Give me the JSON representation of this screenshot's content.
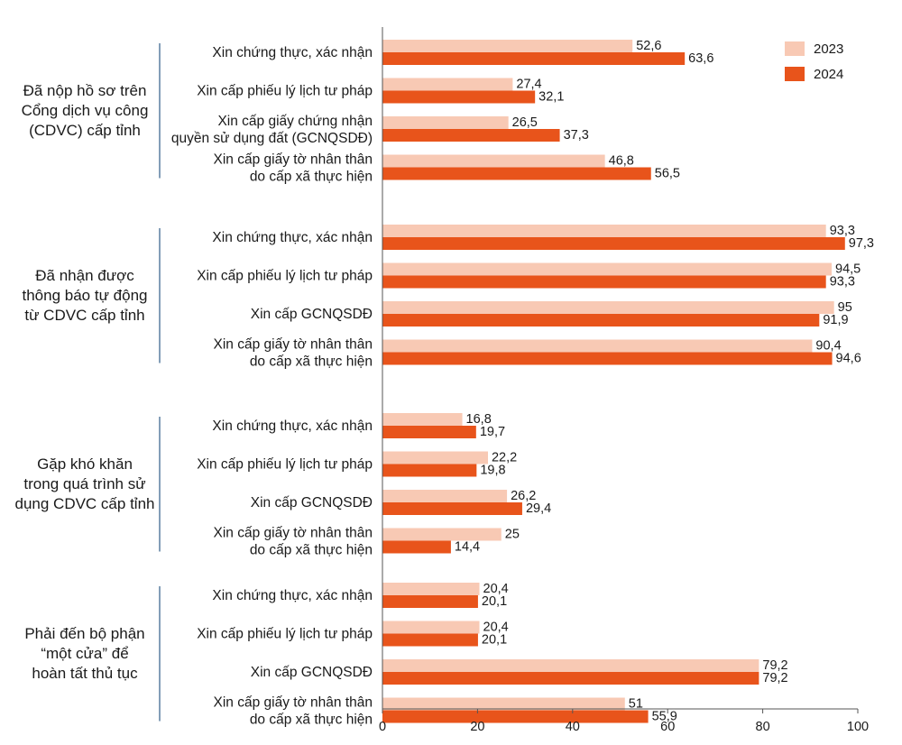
{
  "chart_data": {
    "type": "bar",
    "orientation": "horizontal",
    "xlim": [
      0,
      100
    ],
    "x_ticks": [
      "0",
      "20",
      "40",
      "60",
      "80",
      "100"
    ],
    "grid": false,
    "legend_position": "top-right",
    "colors": {
      "2023": "#f8c9b4",
      "2024": "#e8541b",
      "divider": "#5a7fa0",
      "axis": "#555555"
    },
    "series": [
      {
        "name": "2023",
        "color": "#f8c9b4"
      },
      {
        "name": "2024",
        "color": "#e8541b"
      }
    ],
    "groups": [
      {
        "label": [
          "Đã nộp hồ sơ trên",
          "Cổng dịch vụ công",
          "(CDVC) cấp tỉnh"
        ],
        "categories": [
          {
            "label": [
              "Xin chứng thực, xác nhận"
            ],
            "values": [
              52.6,
              63.6
            ],
            "value_labels": [
              "52,6",
              "63,6"
            ]
          },
          {
            "label": [
              "Xin cấp phiếu lý lịch tư pháp"
            ],
            "values": [
              27.4,
              32.1
            ],
            "value_labels": [
              "27,4",
              "32,1"
            ]
          },
          {
            "label": [
              "Xin cấp giấy chứng nhận",
              "quyền sử dụng đất (GCNQSDĐ)"
            ],
            "values": [
              26.5,
              37.3
            ],
            "value_labels": [
              "26,5",
              "37,3"
            ]
          },
          {
            "label": [
              "Xin cấp giấy tờ nhân thân",
              "do cấp xã thực hiện"
            ],
            "values": [
              46.8,
              56.5
            ],
            "value_labels": [
              "46,8",
              "56,5"
            ]
          }
        ]
      },
      {
        "label": [
          "Đã nhận được",
          "thông báo tự động",
          "từ CDVC cấp tỉnh"
        ],
        "categories": [
          {
            "label": [
              "Xin chứng thực, xác nhận"
            ],
            "values": [
              93.3,
              97.3
            ],
            "value_labels": [
              "93,3",
              "97,3"
            ]
          },
          {
            "label": [
              "Xin cấp phiếu lý lịch tư pháp"
            ],
            "values": [
              94.5,
              93.3
            ],
            "value_labels": [
              "94,5",
              "93,3"
            ]
          },
          {
            "label": [
              "Xin cấp GCNQSDĐ"
            ],
            "values": [
              95,
              91.9
            ],
            "value_labels": [
              "95",
              "91,9"
            ]
          },
          {
            "label": [
              "Xin cấp giấy tờ nhân thân",
              "do cấp xã thực hiện"
            ],
            "values": [
              90.4,
              94.6
            ],
            "value_labels": [
              "90,4",
              "94,6"
            ]
          }
        ]
      },
      {
        "label": [
          "Gặp khó khăn",
          "trong quá trình sử",
          "dụng CDVC cấp tỉnh"
        ],
        "categories": [
          {
            "label": [
              "Xin chứng thực, xác nhận"
            ],
            "values": [
              16.8,
              19.7
            ],
            "value_labels": [
              "16,8",
              "19,7"
            ]
          },
          {
            "label": [
              "Xin cấp phiếu lý lịch tư pháp"
            ],
            "values": [
              22.2,
              19.8
            ],
            "value_labels": [
              "22,2",
              "19,8"
            ]
          },
          {
            "label": [
              "Xin cấp GCNQSDĐ"
            ],
            "values": [
              26.2,
              29.4
            ],
            "value_labels": [
              "26,2",
              "29,4"
            ]
          },
          {
            "label": [
              "Xin cấp giấy tờ nhân thân",
              "do cấp xã thực hiện"
            ],
            "values": [
              25,
              14.4
            ],
            "value_labels": [
              "25",
              "14,4"
            ]
          }
        ]
      },
      {
        "label": [
          "Phải đến bộ phận",
          "“một cửa” để",
          "hoàn tất thủ tục"
        ],
        "categories": [
          {
            "label": [
              "Xin chứng thực, xác nhận"
            ],
            "values": [
              20.4,
              20.1
            ],
            "value_labels": [
              "20,4",
              "20,1"
            ]
          },
          {
            "label": [
              "Xin cấp phiếu lý lịch tư pháp"
            ],
            "values": [
              20.4,
              20.1
            ],
            "value_labels": [
              "20,4",
              "20,1"
            ]
          },
          {
            "label": [
              "Xin cấp GCNQSDĐ"
            ],
            "values": [
              79.2,
              79.2
            ],
            "value_labels": [
              "79,2",
              "79,2"
            ]
          },
          {
            "label": [
              "Xin cấp giấy tờ nhân thân",
              "do cấp xã thực hiện"
            ],
            "values": [
              51,
              55.9
            ],
            "value_labels": [
              "51",
              "55,9"
            ]
          }
        ]
      }
    ]
  }
}
